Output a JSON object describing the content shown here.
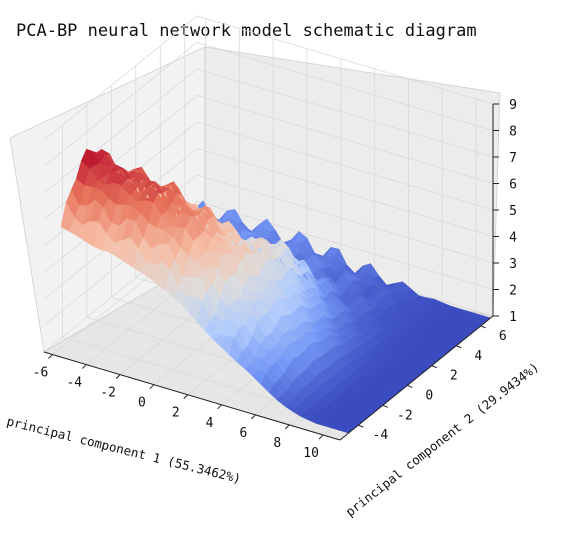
{
  "chart_data": {
    "type": "surface3d",
    "title": "PCA-BP neural network model schematic diagram",
    "xlabel": "principal component 1 (55.3462%)",
    "ylabel": "principal component 2 (29.9434%)",
    "zlabel": "",
    "x_ticks": [
      -6,
      -4,
      -2,
      0,
      2,
      4,
      6,
      8,
      10
    ],
    "y_ticks": [
      -4,
      -2,
      0,
      2,
      4,
      6
    ],
    "z_ticks": [
      1,
      2,
      3,
      4,
      5,
      6,
      7,
      8,
      9
    ],
    "xlim": [
      -6.5,
      11
    ],
    "ylim": [
      -5.5,
      7
    ],
    "zlim": [
      1,
      9
    ],
    "colormap": [
      "#3b4cc0",
      "#7396f5",
      "#b0cbfc",
      "#dddddd",
      "#f6bfa6",
      "#e7745b",
      "#b40426"
    ],
    "grid": true,
    "surface_profile": {
      "x": [
        -6,
        -5,
        -4,
        -3,
        -2,
        -1,
        0,
        1,
        2,
        3,
        4,
        5,
        6,
        7,
        8,
        9,
        10,
        11
      ],
      "z_top": [
        7.4,
        7.2,
        7.0,
        7.0,
        6.8,
        6.5,
        6.2,
        5.7,
        5.0,
        4.2,
        3.6,
        3.0,
        2.3,
        1.6,
        1.2,
        1.0,
        1.0,
        1.0
      ]
    }
  },
  "chart_text": {
    "title": "PCA-BP neural network model schematic diagram",
    "xlabel": "principal component 1 (55.3462%)",
    "ylabel": "principal component 2 (29.9434%)",
    "x_tick_labels": [
      "-6",
      "-4",
      "-2",
      "0",
      "2",
      "4",
      "6",
      "8",
      "10"
    ],
    "y_tick_labels": [
      "-4",
      "-2",
      "0",
      "2",
      "4",
      "6"
    ],
    "z_tick_labels": [
      "1",
      "2",
      "3",
      "4",
      "5",
      "6",
      "7",
      "8",
      "9"
    ]
  }
}
